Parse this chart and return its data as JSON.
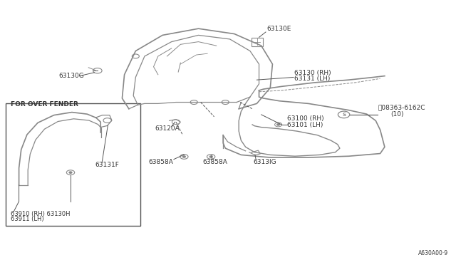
{
  "bg_color": "#ffffff",
  "line_color": "#555555",
  "text_color": "#333333",
  "diagram_color": "#888888",
  "fig_width": 6.4,
  "fig_height": 3.72,
  "dpi": 100,
  "footer_text": "A630A00·9",
  "label_63130E": "63130E",
  "label_63130G": "63130G",
  "label_63130_RH": "63130 (RH)",
  "label_63131_LH": "63131 (LH)",
  "label_63120A": "63120A",
  "label_63100_RH": "63100 (RH)",
  "label_63101_LH": "63101 (LH)",
  "label_S08363": "Ⓝ08363-6162C",
  "label_S08363b": "(10)",
  "label_63858A_1": "63858A",
  "label_63858A_2": "63858A",
  "label_6313lG": "6313lG",
  "label_for_over": "FOR OVER FENDER",
  "label_63131F": "63131F",
  "label_63910": "63910 (RH) 63130H",
  "label_63911": "63911 (LH)",
  "label_footer": "A630A00·9"
}
